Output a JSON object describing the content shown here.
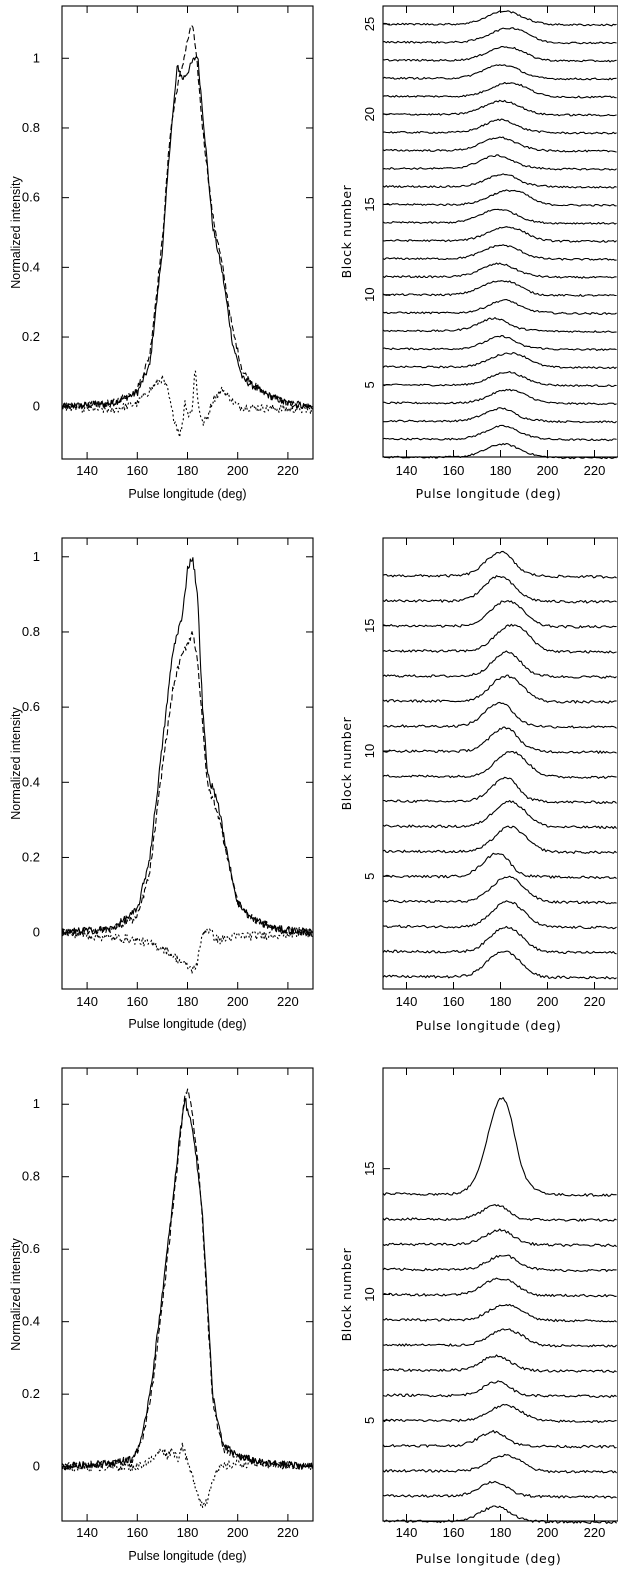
{
  "chart_data": [
    {
      "type": "line",
      "panel": "top-left",
      "xlabel": "Pulse longitude (deg)",
      "ylabel": "Normalized intensity",
      "xlim": [
        130,
        230
      ],
      "ylim": [
        -0.15,
        1.15
      ],
      "xticks": [
        140,
        160,
        180,
        200,
        220
      ],
      "yticks": [
        0,
        0.2,
        0.4,
        0.6,
        0.8,
        1
      ],
      "ytick_labels": [
        "0",
        "0.2",
        "0.4",
        "0.6",
        "0.8",
        "1"
      ],
      "series": [
        {
          "style": "solid",
          "x": [
            130,
            150,
            160,
            165,
            170,
            173,
            176,
            178,
            180,
            182,
            184,
            186,
            190,
            194,
            198,
            202,
            210,
            220,
            230
          ],
          "y": [
            0,
            0.01,
            0.04,
            0.12,
            0.45,
            0.75,
            0.98,
            0.94,
            0.96,
            0.99,
            1.01,
            0.85,
            0.52,
            0.38,
            0.18,
            0.08,
            0.04,
            0.01,
            0.0
          ]
        },
        {
          "style": "dashed",
          "x": [
            130,
            150,
            160,
            165,
            170,
            173,
            176,
            178,
            180,
            182,
            184,
            186,
            190,
            194,
            198,
            202,
            210,
            220,
            230
          ],
          "y": [
            0,
            0.01,
            0.05,
            0.15,
            0.48,
            0.78,
            0.92,
            0.98,
            1.05,
            1.1,
            0.97,
            0.8,
            0.55,
            0.4,
            0.22,
            0.1,
            0.04,
            0.01,
            0.0
          ]
        },
        {
          "style": "dotted",
          "x": [
            130,
            150,
            160,
            168,
            170,
            172,
            174,
            176,
            177,
            178,
            179,
            180,
            182,
            183,
            184,
            186,
            188,
            190,
            194,
            200,
            230
          ],
          "y": [
            0,
            -0.01,
            0.01,
            0.07,
            0.08,
            0.05,
            -0.02,
            -0.06,
            -0.08,
            -0.05,
            0.02,
            -0.02,
            -0.01,
            0.13,
            0.02,
            -0.05,
            -0.03,
            0.02,
            0.05,
            0.0,
            -0.01
          ]
        }
      ]
    },
    {
      "type": "line",
      "panel": "top-right",
      "xlabel": "Pulse longitude (deg)",
      "ylabel": "Block number",
      "xlim": [
        130,
        230
      ],
      "xticks": [
        140,
        160,
        180,
        200,
        220
      ],
      "yticks": [
        5,
        10,
        15,
        20,
        25
      ],
      "offset_min": 1,
      "offset_max": 26,
      "amplitude": 0.75,
      "n_traces": 25,
      "center": 181,
      "width": 7.5
    },
    {
      "type": "line",
      "panel": "middle-left",
      "xlabel": "Pulse longitude (deg)",
      "ylabel": "Normalized intensity",
      "xlim": [
        130,
        230
      ],
      "ylim": [
        -0.15,
        1.05
      ],
      "xticks": [
        140,
        160,
        180,
        200,
        220
      ],
      "yticks": [
        0,
        0.2,
        0.4,
        0.6,
        0.8,
        1
      ],
      "ytick_labels": [
        "0",
        "0.2",
        "0.4",
        "0.6",
        "0.8",
        "1"
      ],
      "series": [
        {
          "style": "solid",
          "x": [
            130,
            150,
            160,
            165,
            170,
            174,
            176,
            178,
            180,
            182,
            184,
            186,
            188,
            192,
            196,
            200,
            205,
            215,
            230
          ],
          "y": [
            0,
            0.01,
            0.06,
            0.2,
            0.5,
            0.74,
            0.8,
            0.84,
            0.97,
            1.0,
            0.9,
            0.6,
            0.42,
            0.35,
            0.2,
            0.08,
            0.04,
            0.01,
            0.0
          ]
        },
        {
          "style": "dashed",
          "x": [
            130,
            150,
            160,
            165,
            170,
            174,
            176,
            178,
            180,
            182,
            184,
            186,
            188,
            192,
            196,
            200,
            205,
            215,
            230
          ],
          "y": [
            0,
            0.01,
            0.04,
            0.16,
            0.44,
            0.64,
            0.7,
            0.74,
            0.77,
            0.8,
            0.73,
            0.55,
            0.39,
            0.32,
            0.2,
            0.08,
            0.04,
            0.01,
            0.0
          ]
        },
        {
          "style": "dotted",
          "x": [
            130,
            160,
            165,
            170,
            174,
            178,
            180,
            182,
            184,
            186,
            188,
            192,
            200,
            230
          ],
          "y": [
            0,
            -0.02,
            -0.03,
            -0.04,
            -0.06,
            -0.08,
            -0.09,
            -0.1,
            -0.08,
            0.0,
            0.01,
            -0.02,
            -0.01,
            0.0
          ]
        }
      ]
    },
    {
      "type": "line",
      "panel": "middle-right",
      "xlabel": "Pulse longitude (deg)",
      "ylabel": "Block number",
      "xlim": [
        130,
        230
      ],
      "xticks": [
        140,
        160,
        180,
        200,
        220
      ],
      "yticks": [
        5,
        10,
        15
      ],
      "offset_min": 0.5,
      "offset_max": 18.5,
      "amplitude": 1.0,
      "n_traces": 17,
      "center": 182,
      "width": 6.5
    },
    {
      "type": "line",
      "panel": "bottom-left",
      "xlabel": "Pulse longitude (deg)",
      "ylabel": "Normalized intensity",
      "xlim": [
        130,
        230
      ],
      "ylim": [
        -0.15,
        1.1
      ],
      "xticks": [
        140,
        160,
        180,
        200,
        220
      ],
      "yticks": [
        0,
        0.2,
        0.4,
        0.6,
        0.8,
        1
      ],
      "ytick_labels": [
        "0",
        "0.2",
        "0.4",
        "0.6",
        "0.8",
        "1"
      ],
      "series": [
        {
          "style": "solid",
          "x": [
            130,
            150,
            158,
            162,
            166,
            170,
            174,
            177,
            179,
            180,
            182,
            184,
            186,
            188,
            190,
            194,
            200,
            210,
            230
          ],
          "y": [
            0,
            0.01,
            0.02,
            0.08,
            0.25,
            0.48,
            0.72,
            0.92,
            1.02,
            0.98,
            0.94,
            0.82,
            0.7,
            0.45,
            0.2,
            0.06,
            0.03,
            0.01,
            0.0
          ]
        },
        {
          "style": "dashed",
          "x": [
            130,
            150,
            158,
            162,
            166,
            170,
            174,
            177,
            179,
            180,
            182,
            184,
            186,
            188,
            190,
            194,
            200,
            210,
            230
          ],
          "y": [
            0,
            0.01,
            0.02,
            0.07,
            0.22,
            0.45,
            0.7,
            0.9,
            1.03,
            1.04,
            0.97,
            0.85,
            0.68,
            0.42,
            0.18,
            0.05,
            0.03,
            0.01,
            0.0
          ]
        },
        {
          "style": "dotted",
          "x": [
            130,
            160,
            166,
            170,
            172,
            174,
            176,
            178,
            180,
            182,
            184,
            186,
            188,
            190,
            194,
            200,
            230
          ],
          "y": [
            0,
            0.0,
            0.02,
            0.05,
            0.03,
            0.05,
            0.02,
            0.06,
            0.01,
            -0.03,
            -0.07,
            -0.11,
            -0.09,
            -0.03,
            0.0,
            0.01,
            0.0
          ]
        }
      ]
    },
    {
      "type": "line",
      "panel": "bottom-right",
      "xlabel": "Pulse longitude (deg)",
      "ylabel": "Block number",
      "xlim": [
        130,
        230
      ],
      "xticks": [
        140,
        160,
        180,
        200,
        220
      ],
      "yticks": [
        5,
        10,
        15
      ],
      "offset_min": 1,
      "offset_max": 19,
      "amplitude": 0.6,
      "n_traces": 14,
      "center": 180,
      "width": 6.5,
      "top_trace_amplitude": 4.0
    }
  ]
}
